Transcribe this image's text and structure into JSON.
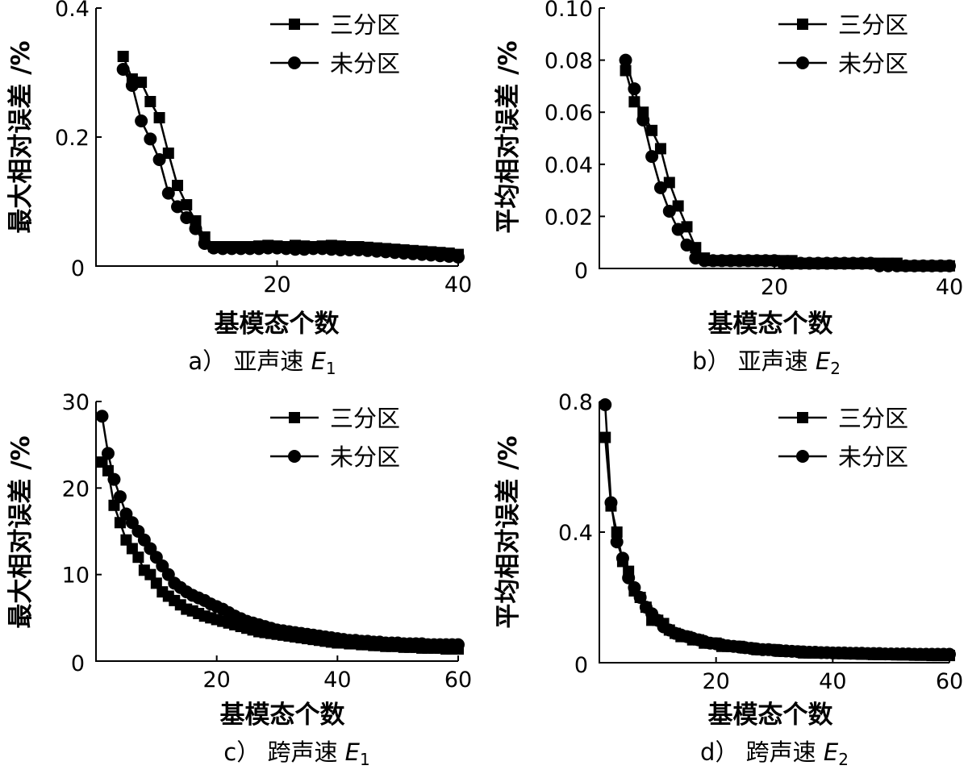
{
  "chart_data": [
    {
      "type": "line",
      "caption": {
        "prefix": "a）",
        "text": "亚声速",
        "var": "E",
        "sub": "1"
      },
      "xlabel": "基模态个数",
      "ylabel": "最大相对误差 /%",
      "xlim": [
        0,
        40
      ],
      "ylim": [
        0,
        0.4
      ],
      "xticks": [
        20,
        40
      ],
      "yticks": [
        0.2,
        0.4
      ],
      "ytick_labels": [
        "0.2",
        "0.4"
      ],
      "origin_label": "0",
      "legend_position": "top-right",
      "series": [
        {
          "name": "三分区",
          "marker": "square",
          "x": [
            3,
            4,
            5,
            6,
            7,
            8,
            9,
            10,
            11,
            12,
            13,
            14,
            15,
            16,
            17,
            18,
            19,
            20,
            21,
            22,
            23,
            24,
            25,
            26,
            27,
            28,
            29,
            30,
            31,
            32,
            33,
            34,
            35,
            36,
            37,
            38,
            39,
            40
          ],
          "y": [
            0.325,
            0.29,
            0.285,
            0.255,
            0.23,
            0.175,
            0.125,
            0.095,
            0.07,
            0.045,
            0.03,
            0.03,
            0.03,
            0.03,
            0.03,
            0.031,
            0.032,
            0.031,
            0.03,
            0.032,
            0.031,
            0.03,
            0.031,
            0.032,
            0.031,
            0.03,
            0.03,
            0.029,
            0.028,
            0.027,
            0.026,
            0.025,
            0.024,
            0.023,
            0.022,
            0.021,
            0.02,
            0.018
          ]
        },
        {
          "name": "未分区",
          "marker": "circle",
          "x": [
            3,
            4,
            5,
            6,
            7,
            8,
            9,
            10,
            11,
            12,
            13,
            14,
            15,
            16,
            17,
            18,
            19,
            20,
            21,
            22,
            23,
            24,
            25,
            26,
            27,
            28,
            29,
            30,
            31,
            32,
            33,
            34,
            35,
            36,
            37,
            38,
            39,
            40
          ],
          "y": [
            0.305,
            0.28,
            0.225,
            0.197,
            0.165,
            0.113,
            0.092,
            0.075,
            0.058,
            0.035,
            0.028,
            0.027,
            0.027,
            0.027,
            0.027,
            0.027,
            0.028,
            0.028,
            0.027,
            0.026,
            0.026,
            0.027,
            0.027,
            0.026,
            0.025,
            0.025,
            0.025,
            0.024,
            0.023,
            0.022,
            0.021,
            0.02,
            0.019,
            0.018,
            0.017,
            0.016,
            0.015,
            0.014
          ]
        }
      ]
    },
    {
      "type": "line",
      "caption": {
        "prefix": "b）",
        "text": "亚声速",
        "var": "E",
        "sub": "2"
      },
      "xlabel": "基模态个数",
      "ylabel": "平均相对误差 /%",
      "xlim": [
        0,
        40
      ],
      "ylim": [
        0,
        0.1
      ],
      "xticks": [
        20,
        40
      ],
      "yticks": [
        0.02,
        0.04,
        0.06,
        0.08,
        0.1
      ],
      "ytick_labels": [
        "0.02",
        "0.04",
        "0.06",
        "0.08",
        "0.10"
      ],
      "origin_label": "0",
      "legend_position": "top-right",
      "series": [
        {
          "name": "三分区",
          "marker": "square",
          "x": [
            3,
            4,
            5,
            6,
            7,
            8,
            9,
            10,
            11,
            12,
            13,
            14,
            15,
            16,
            17,
            18,
            19,
            20,
            21,
            22,
            23,
            24,
            25,
            26,
            27,
            28,
            29,
            30,
            31,
            32,
            33,
            34,
            35,
            36,
            37,
            38,
            39,
            40
          ],
          "y": [
            0.076,
            0.064,
            0.06,
            0.053,
            0.046,
            0.033,
            0.024,
            0.016,
            0.008,
            0.004,
            0.003,
            0.003,
            0.003,
            0.003,
            0.003,
            0.003,
            0.003,
            0.003,
            0.003,
            0.003,
            0.002,
            0.002,
            0.002,
            0.002,
            0.002,
            0.002,
            0.002,
            0.002,
            0.002,
            0.002,
            0.002,
            0.002,
            0.001,
            0.001,
            0.001,
            0.001,
            0.001,
            0.001
          ]
        },
        {
          "name": "未分区",
          "marker": "circle",
          "x": [
            3,
            4,
            5,
            6,
            7,
            8,
            9,
            10,
            11,
            12,
            13,
            14,
            15,
            16,
            17,
            18,
            19,
            20,
            21,
            22,
            23,
            24,
            25,
            26,
            27,
            28,
            29,
            30,
            31,
            32,
            33,
            34,
            35,
            36,
            37,
            38,
            39,
            40
          ],
          "y": [
            0.08,
            0.069,
            0.057,
            0.043,
            0.031,
            0.022,
            0.015,
            0.009,
            0.004,
            0.003,
            0.003,
            0.003,
            0.003,
            0.003,
            0.003,
            0.003,
            0.003,
            0.003,
            0.002,
            0.002,
            0.002,
            0.002,
            0.002,
            0.002,
            0.002,
            0.002,
            0.002,
            0.002,
            0.002,
            0.001,
            0.001,
            0.001,
            0.001,
            0.001,
            0.001,
            0.001,
            0.001,
            0.001
          ]
        }
      ]
    },
    {
      "type": "line",
      "caption": {
        "prefix": "c）",
        "text": "跨声速",
        "var": "E",
        "sub": "1"
      },
      "xlabel": "基模态个数",
      "ylabel": "最大相对误差 /%",
      "xlim": [
        0,
        60
      ],
      "ylim": [
        0,
        30
      ],
      "xticks": [
        20,
        40,
        60
      ],
      "yticks": [
        10,
        20,
        30
      ],
      "ytick_labels": [
        "10",
        "20",
        "30"
      ],
      "origin_label": "0",
      "legend_position": "top-right",
      "series": [
        {
          "name": "三分区",
          "marker": "square",
          "x": [
            1,
            2,
            3,
            4,
            5,
            6,
            7,
            8,
            9,
            10,
            11,
            12,
            13,
            14,
            15,
            16,
            17,
            18,
            19,
            20,
            21,
            22,
            23,
            24,
            25,
            26,
            27,
            28,
            29,
            30,
            31,
            32,
            33,
            34,
            35,
            36,
            37,
            38,
            39,
            40,
            41,
            42,
            43,
            44,
            45,
            46,
            47,
            48,
            49,
            50,
            51,
            52,
            53,
            54,
            55,
            56,
            57,
            58,
            59,
            60
          ],
          "y": [
            23,
            22,
            18,
            16,
            14,
            13,
            12,
            10.5,
            10,
            9,
            8,
            7.5,
            7,
            6.5,
            6,
            5.8,
            5.5,
            5.2,
            5,
            4.8,
            4.6,
            4.4,
            4.2,
            4,
            3.8,
            3.6,
            3.4,
            3.3,
            3.2,
            3.1,
            3,
            2.9,
            2.8,
            2.7,
            2.6,
            2.5,
            2.4,
            2.3,
            2.2,
            2.1,
            2.1,
            2,
            2,
            1.9,
            1.9,
            1.8,
            1.8,
            1.7,
            1.7,
            1.7,
            1.6,
            1.6,
            1.6,
            1.5,
            1.5,
            1.5,
            1.5,
            1.4,
            1.4,
            1.4
          ]
        },
        {
          "name": "未分区",
          "marker": "circle",
          "x": [
            1,
            2,
            3,
            4,
            5,
            6,
            7,
            8,
            9,
            10,
            11,
            12,
            13,
            14,
            15,
            16,
            17,
            18,
            19,
            20,
            21,
            22,
            23,
            24,
            25,
            26,
            27,
            28,
            29,
            30,
            31,
            32,
            33,
            34,
            35,
            36,
            37,
            38,
            39,
            40,
            41,
            42,
            43,
            44,
            45,
            46,
            47,
            48,
            49,
            50,
            51,
            52,
            53,
            54,
            55,
            56,
            57,
            58,
            59,
            60
          ],
          "y": [
            28.3,
            24,
            21,
            19,
            17,
            16,
            15,
            14,
            13,
            12,
            11,
            10,
            9,
            8.5,
            8,
            7.6,
            7.3,
            7,
            6.6,
            6.3,
            6,
            5.6,
            5.2,
            4.9,
            4.6,
            4.4,
            4.2,
            4,
            3.8,
            3.6,
            3.5,
            3.4,
            3.3,
            3.2,
            3.1,
            3,
            2.9,
            2.8,
            2.7,
            2.6,
            2.5,
            2.4,
            2.4,
            2.3,
            2.3,
            2.2,
            2.2,
            2.1,
            2.1,
            2.1,
            2,
            2,
            2,
            2,
            1.9,
            1.9,
            1.9,
            1.9,
            1.9,
            1.9
          ]
        }
      ]
    },
    {
      "type": "line",
      "caption": {
        "prefix": "d）",
        "text": "跨声速",
        "var": "E",
        "sub": "2"
      },
      "xlabel": "基模态个数",
      "ylabel": "平均相对误差 /%",
      "xlim": [
        0,
        60
      ],
      "ylim": [
        0,
        0.8
      ],
      "xticks": [
        20,
        40,
        60
      ],
      "yticks": [
        0.4,
        0.8
      ],
      "ytick_labels": [
        "0.4",
        "0.8"
      ],
      "origin_label": "0",
      "legend_position": "top-right",
      "series": [
        {
          "name": "三分区",
          "marker": "square",
          "x": [
            1,
            2,
            3,
            4,
            5,
            6,
            7,
            8,
            9,
            10,
            11,
            12,
            13,
            14,
            15,
            16,
            17,
            18,
            19,
            20,
            21,
            22,
            23,
            24,
            25,
            26,
            27,
            28,
            29,
            30,
            31,
            32,
            33,
            34,
            35,
            36,
            37,
            38,
            39,
            40,
            41,
            42,
            43,
            44,
            45,
            46,
            47,
            48,
            49,
            50,
            51,
            52,
            53,
            54,
            55,
            56,
            57,
            58,
            59,
            60
          ],
          "y": [
            0.69,
            0.48,
            0.4,
            0.31,
            0.28,
            0.22,
            0.2,
            0.17,
            0.13,
            0.13,
            0.12,
            0.1,
            0.09,
            0.08,
            0.08,
            0.07,
            0.07,
            0.06,
            0.06,
            0.06,
            0.05,
            0.05,
            0.05,
            0.05,
            0.045,
            0.045,
            0.04,
            0.04,
            0.04,
            0.04,
            0.035,
            0.035,
            0.035,
            0.035,
            0.03,
            0.03,
            0.03,
            0.03,
            0.03,
            0.03,
            0.028,
            0.028,
            0.027,
            0.027,
            0.026,
            0.026,
            0.025,
            0.025,
            0.025,
            0.025,
            0.024,
            0.024,
            0.024,
            0.023,
            0.023,
            0.023,
            0.022,
            0.022,
            0.022,
            0.022
          ]
        },
        {
          "name": "未分区",
          "marker": "circle",
          "x": [
            1,
            2,
            3,
            4,
            5,
            6,
            7,
            8,
            9,
            10,
            11,
            12,
            13,
            14,
            15,
            16,
            17,
            18,
            19,
            20,
            21,
            22,
            23,
            24,
            25,
            26,
            27,
            28,
            29,
            30,
            31,
            32,
            33,
            34,
            35,
            36,
            37,
            38,
            39,
            40,
            41,
            42,
            43,
            44,
            45,
            46,
            47,
            48,
            49,
            50,
            51,
            52,
            53,
            54,
            55,
            56,
            57,
            58,
            59,
            60
          ],
          "y": [
            0.79,
            0.49,
            0.37,
            0.32,
            0.26,
            0.23,
            0.2,
            0.17,
            0.15,
            0.13,
            0.11,
            0.1,
            0.09,
            0.085,
            0.08,
            0.075,
            0.07,
            0.065,
            0.06,
            0.058,
            0.055,
            0.052,
            0.05,
            0.048,
            0.046,
            0.044,
            0.042,
            0.04,
            0.04,
            0.038,
            0.037,
            0.036,
            0.035,
            0.034,
            0.033,
            0.032,
            0.032,
            0.031,
            0.031,
            0.03,
            0.03,
            0.03,
            0.029,
            0.029,
            0.029,
            0.028,
            0.028,
            0.028,
            0.027,
            0.027,
            0.027,
            0.027,
            0.027,
            0.026,
            0.026,
            0.026,
            0.026,
            0.026,
            0.026,
            0.026
          ]
        }
      ]
    }
  ]
}
